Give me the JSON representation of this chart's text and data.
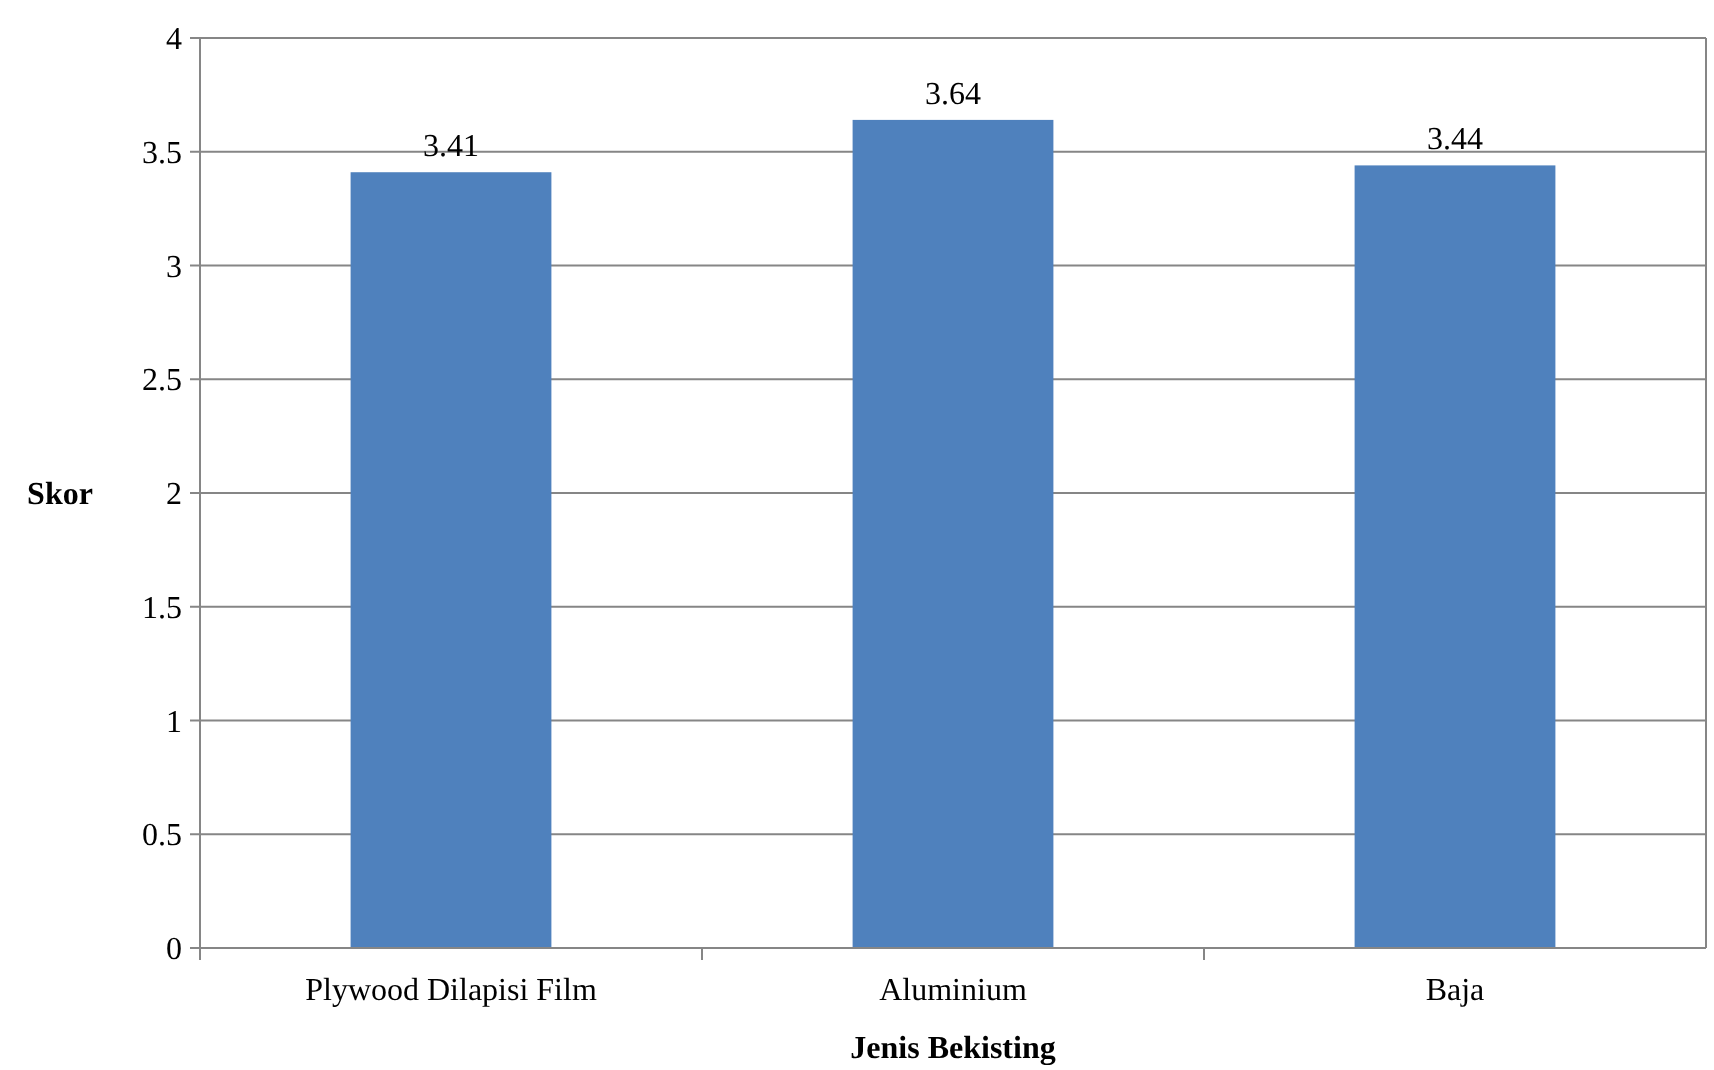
{
  "chart_data": {
    "type": "bar",
    "xlabel": "Jenis Bekisting",
    "ylabel": "Skor",
    "categories": [
      "Plywood Dilapisi Film",
      "Aluminium",
      "Baja"
    ],
    "values": [
      3.41,
      3.64,
      3.44
    ],
    "color": "#4f81bd",
    "ylim": [
      0,
      4
    ],
    "yticks": [
      0,
      0.5,
      1,
      1.5,
      2,
      2.5,
      3,
      3.5,
      4
    ],
    "grid": "y",
    "data_labels": true
  }
}
